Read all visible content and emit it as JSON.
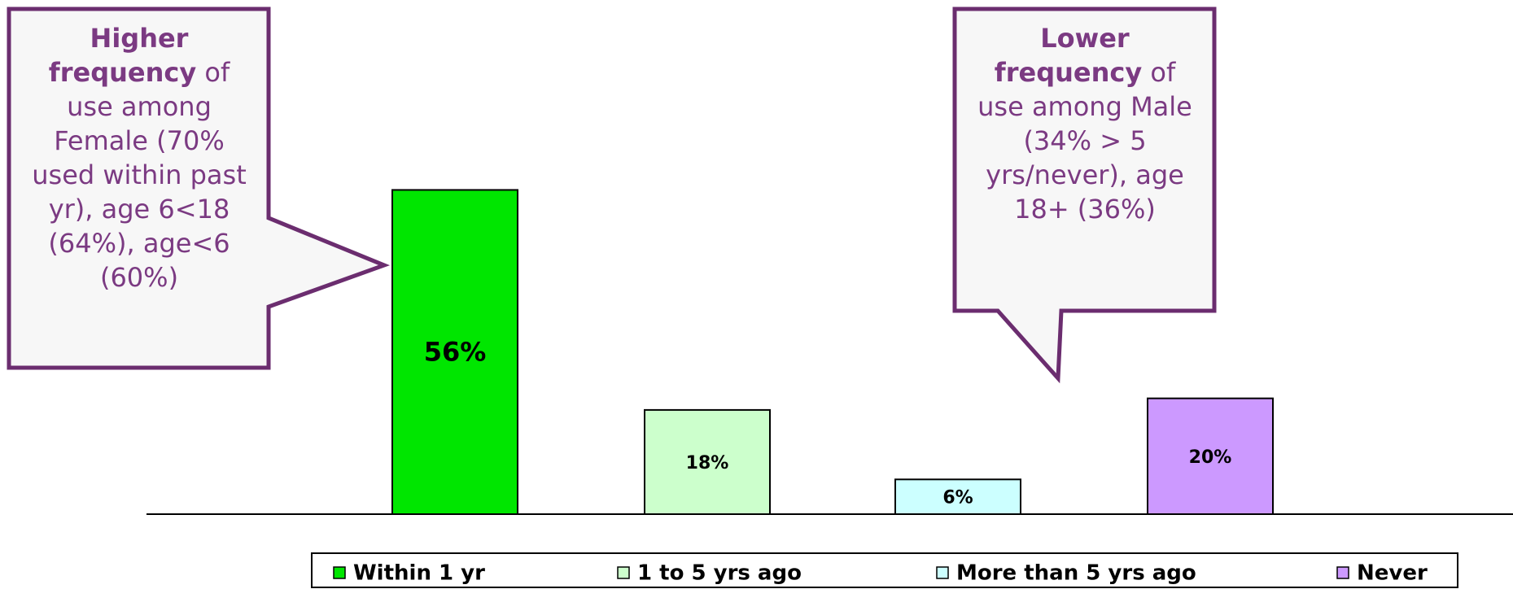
{
  "chart_data": {
    "type": "bar",
    "series": [
      {
        "name": "Within 1 yr",
        "color": "#00e600",
        "values": [
          56
        ],
        "value_labels": [
          "56%"
        ]
      },
      {
        "name": "1 to 5 yrs ago",
        "color": "#ccffcc",
        "values": [
          18
        ],
        "value_labels": [
          "18%"
        ]
      },
      {
        "name": "More than 5 yrs ago",
        "color": "#ccffff",
        "values": [
          6
        ],
        "value_labels": [
          "6%"
        ]
      },
      {
        "name": "Never",
        "color": "#cc99ff",
        "values": [
          20
        ],
        "value_labels": [
          "20%"
        ]
      }
    ],
    "ylim": [
      0,
      60
    ],
    "annotations": [
      {
        "bold": "Higher frequency",
        "text": " of use among Female (70% used within past yr), age 6<18 (64%), age<6 (60%)"
      },
      {
        "bold": "Lower frequency",
        "text": " of use among Male (34% > 5 yrs/never), age 18+ (36%)"
      }
    ]
  }
}
